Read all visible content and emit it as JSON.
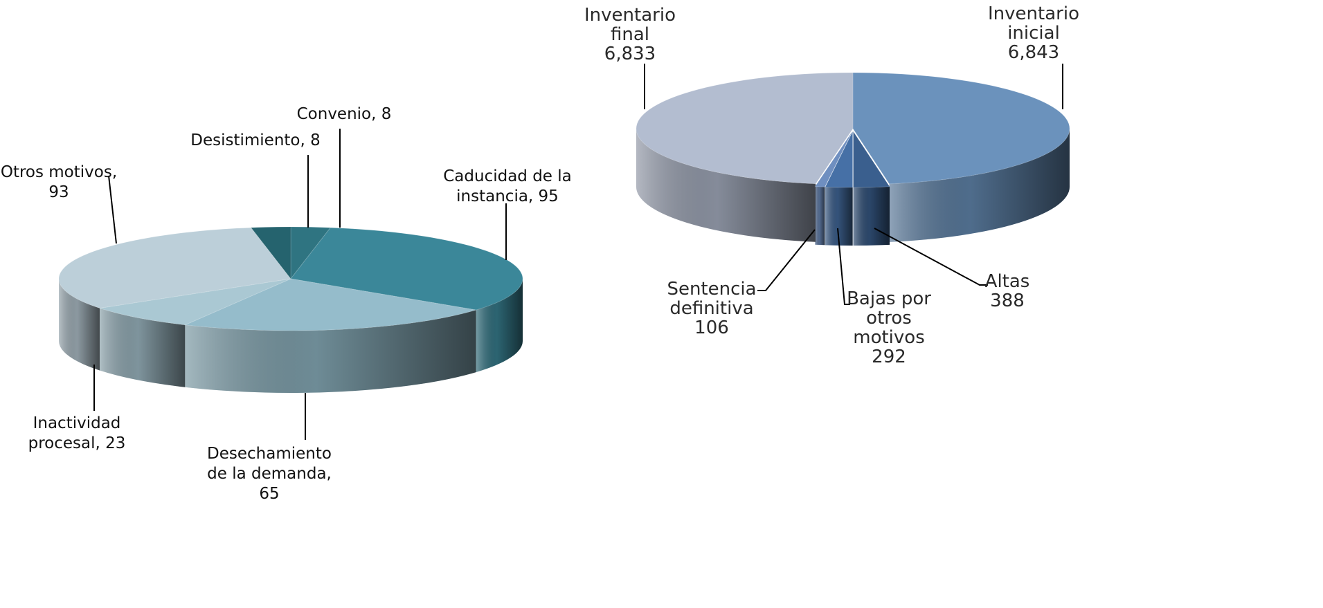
{
  "chart_data": [
    {
      "type": "pie",
      "title": "",
      "slices": [
        {
          "label": "Convenio",
          "value": 8,
          "text_lines": [
            "Convenio, 8"
          ],
          "color": "#2f7481"
        },
        {
          "label": "Caducidad de la instancia",
          "value": 95,
          "text_lines": [
            "Caducidad de la",
            "instancia, 95"
          ],
          "color": "#3b8799"
        },
        {
          "label": "Desechamiento de la demanda",
          "value": 65,
          "text_lines": [
            "Desechamiento",
            "de la demanda,",
            "65"
          ],
          "color": "#95bccb"
        },
        {
          "label": "Inactividad procesal",
          "value": 23,
          "text_lines": [
            "Inactividad",
            "procesal, 23"
          ],
          "color": "#aac8d3"
        },
        {
          "label": "Otros motivos",
          "value": 93,
          "text_lines": [
            "Otros motivos,",
            "93"
          ],
          "color": "#bccfd9"
        },
        {
          "label": "Desistimiento",
          "value": 8,
          "text_lines": [
            "Desistimiento, 8"
          ],
          "color": "#25636e"
        }
      ]
    },
    {
      "type": "pie",
      "title": "",
      "slices": [
        {
          "label": "Inventario inicial",
          "value": 6843,
          "text_lines": [
            "Inventario",
            "inicial",
            "6,843"
          ],
          "color": "#6b92bc"
        },
        {
          "label": "Altas",
          "value": 388,
          "text_lines": [
            "Altas",
            "388"
          ],
          "color": "#3a5f8e"
        },
        {
          "label": "Bajas por otros motivos",
          "value": 292,
          "text_lines": [
            "Bajas por",
            "otros",
            "motivos",
            "292"
          ],
          "color": "#4670a6"
        },
        {
          "label": "Sentencia definitiva",
          "value": 106,
          "text_lines": [
            "Sentencia",
            "definitiva",
            "106"
          ],
          "color": "#6f8fc0"
        },
        {
          "label": "Inventario final",
          "value": 6833,
          "text_lines": [
            "Inventario",
            "final",
            "6,833"
          ],
          "color": "#b3bdd0"
        }
      ]
    }
  ]
}
